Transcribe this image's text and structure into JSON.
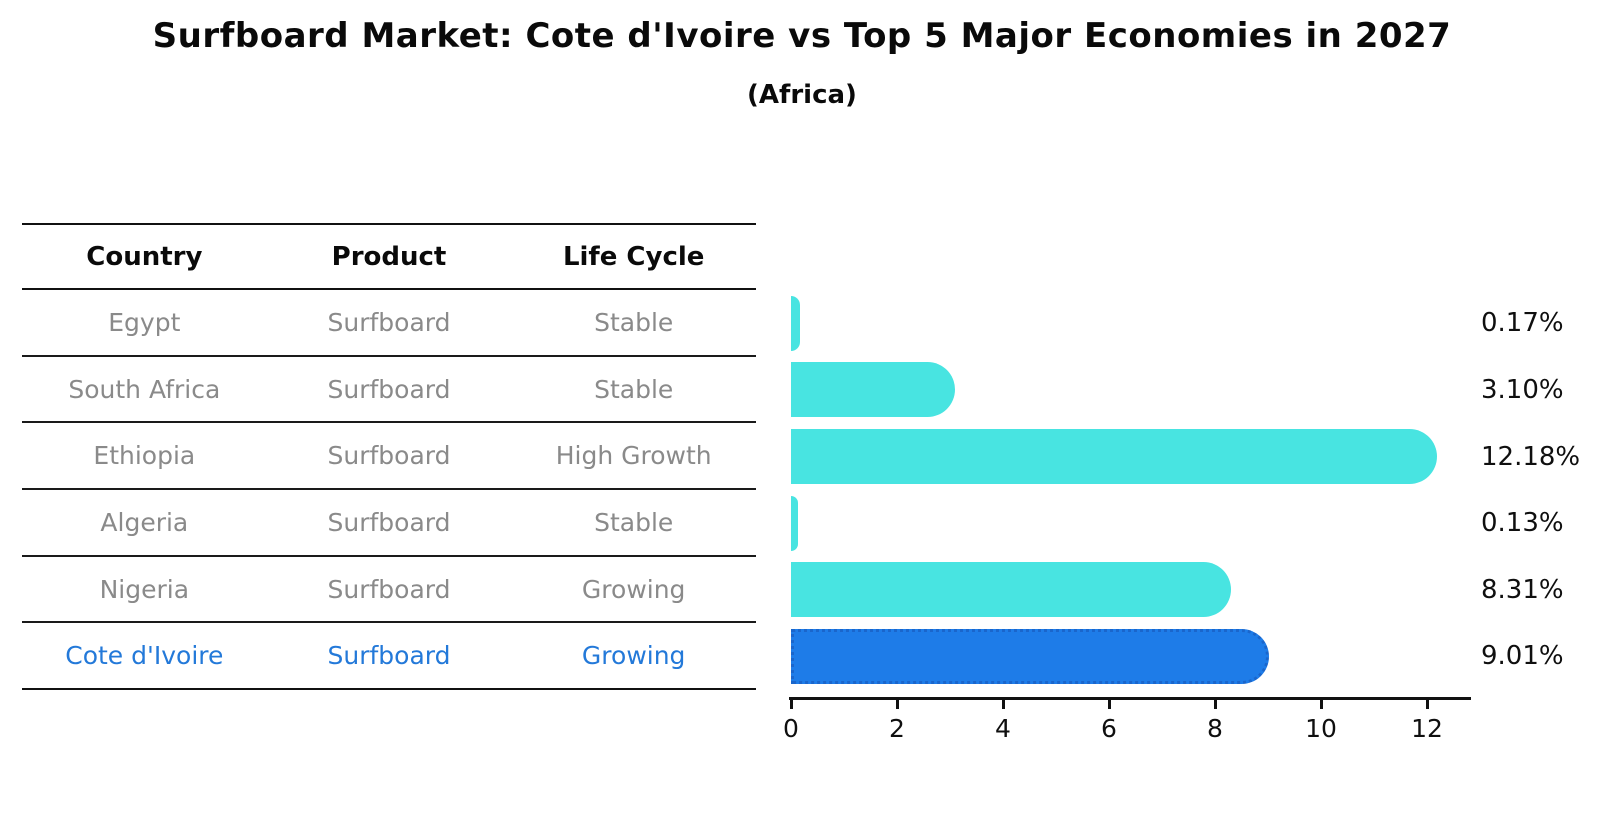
{
  "title": "Surfboard Market: Cote d'Ivoire vs Top 5 Major Economies in 2027",
  "subtitle": "(Africa)",
  "table": {
    "headers": [
      "Country",
      "Product",
      "Life Cycle"
    ],
    "rows": [
      {
        "country": "Egypt",
        "product": "Surfboard",
        "life_cycle": "Stable",
        "highlight": false
      },
      {
        "country": "South Africa",
        "product": "Surfboard",
        "life_cycle": "Stable",
        "highlight": false
      },
      {
        "country": "Ethiopia",
        "product": "Surfboard",
        "life_cycle": "High Growth",
        "highlight": false
      },
      {
        "country": "Algeria",
        "product": "Surfboard",
        "life_cycle": "Stable",
        "highlight": false
      },
      {
        "country": "Nigeria",
        "product": "Surfboard",
        "life_cycle": "Growing",
        "highlight": false
      },
      {
        "country": "Cote d'Ivoire",
        "product": "Surfboard",
        "life_cycle": "Growing",
        "highlight": true
      }
    ]
  },
  "chart_data": {
    "type": "bar",
    "orientation": "horizontal",
    "title": "Surfboard Market: Cote d'Ivoire vs Top 5 Major Economies in 2027",
    "subtitle": "(Africa)",
    "categories": [
      "Egypt",
      "South Africa",
      "Ethiopia",
      "Algeria",
      "Nigeria",
      "Cote d'Ivoire"
    ],
    "values": [
      0.17,
      3.1,
      12.18,
      0.13,
      8.31,
      9.01
    ],
    "value_labels": [
      "0.17%",
      "3.10%",
      "12.18%",
      "0.13%",
      "8.31%",
      "9.01%"
    ],
    "xlabel": "",
    "ylabel": "",
    "xlim": [
      0,
      12.83
    ],
    "xticks": [
      0,
      2,
      4,
      6,
      8,
      10,
      12
    ],
    "grid": false,
    "legend": "none",
    "highlight_index": 5
  },
  "colors": {
    "bar": "#48e4e1",
    "highlight_bar": "#1e7ce8",
    "highlight_border": "#1a66cc",
    "highlight_text": "#2379d9",
    "row_text": "#8a8a8a",
    "axis": "#111111"
  }
}
